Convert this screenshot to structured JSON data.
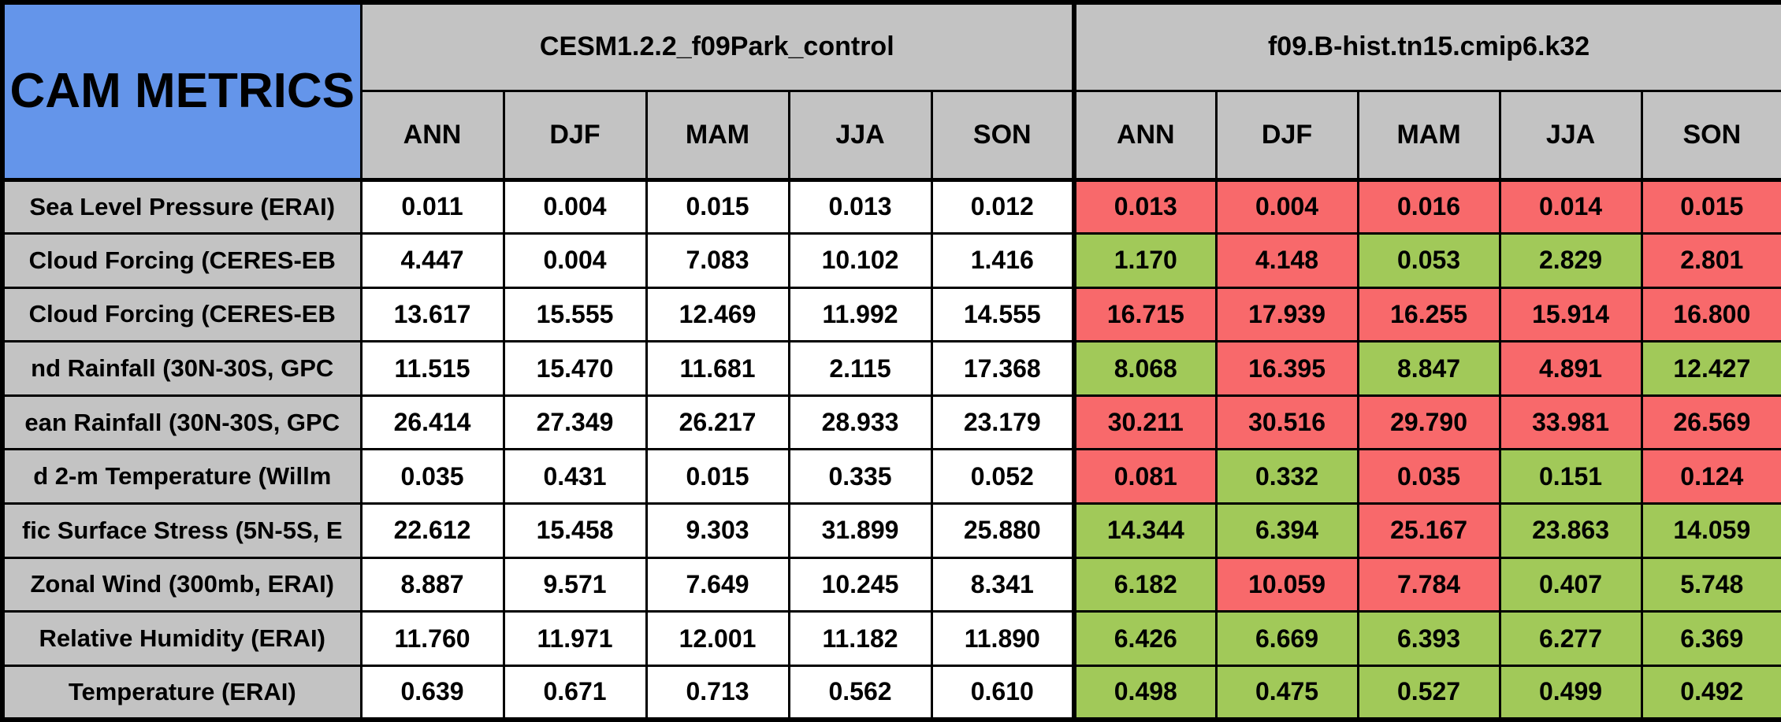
{
  "colors": {
    "blue": "#6495EA",
    "gray": "#C3C3C3",
    "white": "#FFFFFF",
    "red": "#F8696B",
    "green": "#A1C959"
  },
  "chart_data": {
    "type": "table",
    "title": "CAM METRICS",
    "column_groups": [
      "CESM1.2.2_f09Park_control",
      "f09.B-hist.tn15.cmip6.k32"
    ],
    "seasons": [
      "ANN",
      "DJF",
      "MAM",
      "JJA",
      "SON"
    ],
    "rows": [
      {
        "label": "Sea Level Pressure (ERAI)",
        "control": [
          "0.011",
          "0.004",
          "0.015",
          "0.013",
          "0.012"
        ],
        "comparison": [
          "0.013",
          "0.004",
          "0.016",
          "0.014",
          "0.015"
        ],
        "comparison_colors": [
          "red",
          "red",
          "red",
          "red",
          "red"
        ]
      },
      {
        "label": "Cloud Forcing (CERES-EB",
        "control": [
          "4.447",
          "0.004",
          "7.083",
          "10.102",
          "1.416"
        ],
        "comparison": [
          "1.170",
          "4.148",
          "0.053",
          "2.829",
          "2.801"
        ],
        "comparison_colors": [
          "green",
          "red",
          "green",
          "green",
          "red"
        ]
      },
      {
        "label": "Cloud Forcing (CERES-EB",
        "control": [
          "13.617",
          "15.555",
          "12.469",
          "11.992",
          "14.555"
        ],
        "comparison": [
          "16.715",
          "17.939",
          "16.255",
          "15.914",
          "16.800"
        ],
        "comparison_colors": [
          "red",
          "red",
          "red",
          "red",
          "red"
        ]
      },
      {
        "label": "nd Rainfall (30N-30S, GPC",
        "control": [
          "11.515",
          "15.470",
          "11.681",
          "2.115",
          "17.368"
        ],
        "comparison": [
          "8.068",
          "16.395",
          "8.847",
          "4.891",
          "12.427"
        ],
        "comparison_colors": [
          "green",
          "red",
          "green",
          "red",
          "green"
        ]
      },
      {
        "label": "ean Rainfall (30N-30S, GPC",
        "control": [
          "26.414",
          "27.349",
          "26.217",
          "28.933",
          "23.179"
        ],
        "comparison": [
          "30.211",
          "30.516",
          "29.790",
          "33.981",
          "26.569"
        ],
        "comparison_colors": [
          "red",
          "red",
          "red",
          "red",
          "red"
        ]
      },
      {
        "label": "d 2-m Temperature (Willm",
        "control": [
          "0.035",
          "0.431",
          "0.015",
          "0.335",
          "0.052"
        ],
        "comparison": [
          "0.081",
          "0.332",
          "0.035",
          "0.151",
          "0.124"
        ],
        "comparison_colors": [
          "red",
          "green",
          "red",
          "green",
          "red"
        ]
      },
      {
        "label": "fic Surface Stress (5N-5S, E",
        "control": [
          "22.612",
          "15.458",
          "9.303",
          "31.899",
          "25.880"
        ],
        "comparison": [
          "14.344",
          "6.394",
          "25.167",
          "23.863",
          "14.059"
        ],
        "comparison_colors": [
          "green",
          "green",
          "red",
          "green",
          "green"
        ]
      },
      {
        "label": "Zonal Wind (300mb, ERAI)",
        "control": [
          "8.887",
          "9.571",
          "7.649",
          "10.245",
          "8.341"
        ],
        "comparison": [
          "6.182",
          "10.059",
          "7.784",
          "0.407",
          "5.748"
        ],
        "comparison_colors": [
          "green",
          "red",
          "red",
          "green",
          "green"
        ]
      },
      {
        "label": "Relative Humidity (ERAI)",
        "control": [
          "11.760",
          "11.971",
          "12.001",
          "11.182",
          "11.890"
        ],
        "comparison": [
          "6.426",
          "6.669",
          "6.393",
          "6.277",
          "6.369"
        ],
        "comparison_colors": [
          "green",
          "green",
          "green",
          "green",
          "green"
        ]
      },
      {
        "label": "Temperature (ERAI)",
        "control": [
          "0.639",
          "0.671",
          "0.713",
          "0.562",
          "0.610"
        ],
        "comparison": [
          "0.498",
          "0.475",
          "0.527",
          "0.499",
          "0.492"
        ],
        "comparison_colors": [
          "green",
          "green",
          "green",
          "green",
          "green"
        ]
      }
    ]
  }
}
